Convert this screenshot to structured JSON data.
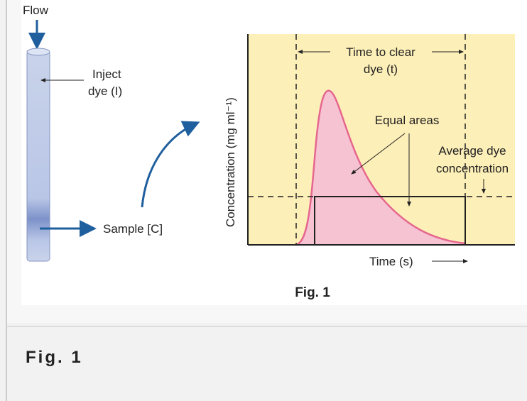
{
  "figure": {
    "flow_label": "Flow",
    "inject_label": [
      "Inject",
      "dye (I)"
    ],
    "sample_label": "Sample [C]",
    "y_axis_label": "Concentration (mg ml⁻¹)",
    "time_label": [
      "Time to clear",
      "dye (t)"
    ],
    "equal_areas_label": "Equal areas",
    "average_label": [
      "Average dye",
      "concentration"
    ],
    "x_axis_label": "Time (s)",
    "figure_number": "Fig. 1"
  },
  "caption": "Fig. 1"
}
